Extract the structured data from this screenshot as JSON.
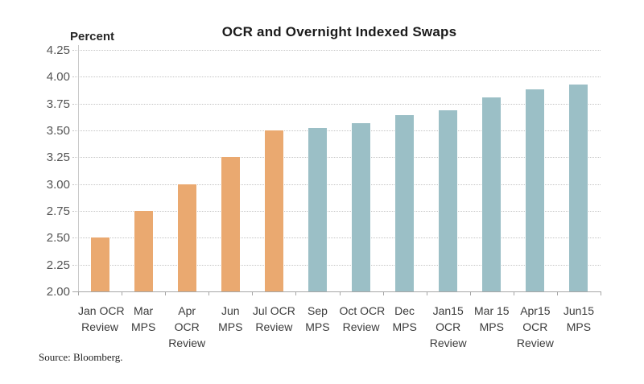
{
  "header": {
    "title": "OCR and Overnight Indexed Swaps",
    "axis_unit_label": "Percent"
  },
  "footer": {
    "source": "Source: Bloomberg."
  },
  "chart_data": {
    "type": "bar",
    "title": "OCR and Overnight Indexed Swaps",
    "ylabel": "Percent",
    "xlabel": "",
    "ylim": [
      2.0,
      4.25
    ],
    "ytick_interval": 0.25,
    "ytick_labels": [
      "4.25",
      "4.00",
      "3.75",
      "3.50",
      "3.25",
      "3.00",
      "2.75",
      "2.50",
      "2.25",
      "2.00"
    ],
    "grid": "horizontal-dotted",
    "legend_position": "none",
    "categories": [
      "Jan OCR Review",
      "Mar MPS",
      "Apr OCR Review",
      "Jun MPS",
      "Jul OCR Review",
      "Sep MPS",
      "Oct OCR Review",
      "Dec MPS",
      "Jan15 OCR Review",
      "Mar 15 MPS",
      "Apr15 OCR Review",
      "Jun15 MPS"
    ],
    "category_label_lines": [
      [
        "Jan OCR",
        "Review"
      ],
      [
        "Mar",
        "MPS"
      ],
      [
        "Apr",
        "OCR",
        "Review"
      ],
      [
        "Jun",
        "MPS"
      ],
      [
        "Jul OCR",
        "Review"
      ],
      [
        "Sep",
        "MPS"
      ],
      [
        "Oct OCR",
        "Review"
      ],
      [
        "Dec",
        "MPS"
      ],
      [
        "Jan15",
        "OCR",
        "Review"
      ],
      [
        "Mar 15",
        "MPS"
      ],
      [
        "Apr15",
        "OCR",
        "Review"
      ],
      [
        "Jun15",
        "MPS"
      ]
    ],
    "values": [
      2.5,
      2.75,
      3.0,
      3.25,
      3.5,
      3.52,
      3.57,
      3.64,
      3.69,
      3.81,
      3.88,
      3.93
    ],
    "bar_groups": [
      "ocr",
      "ocr",
      "ocr",
      "ocr",
      "ocr",
      "ois",
      "ois",
      "ois",
      "ois",
      "ois",
      "ois",
      "ois"
    ],
    "colors": {
      "ocr": "#EAA970",
      "ois": "#9BBFC6"
    },
    "source": "Source: Bloomberg."
  }
}
